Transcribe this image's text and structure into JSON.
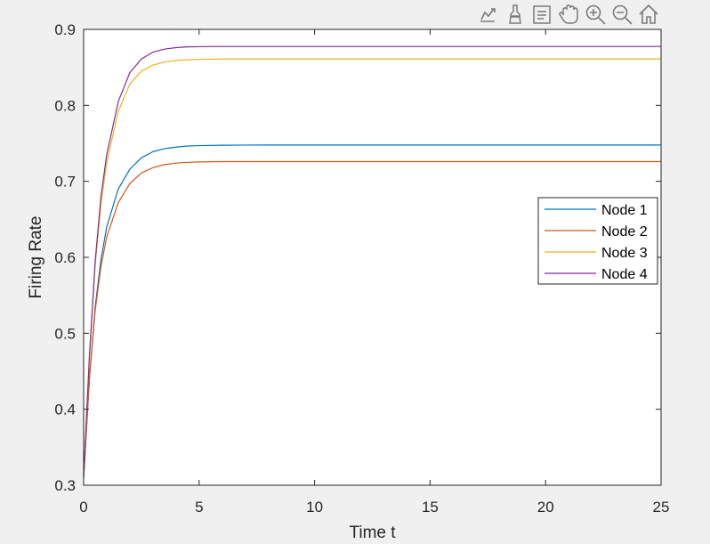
{
  "toolbar": {
    "buttons": [
      {
        "name": "export-icon"
      },
      {
        "name": "brush-icon"
      },
      {
        "name": "datatip-icon"
      },
      {
        "name": "pan-icon"
      },
      {
        "name": "zoom-in-icon"
      },
      {
        "name": "zoom-out-icon"
      },
      {
        "name": "home-icon"
      }
    ]
  },
  "chart_data": {
    "type": "line",
    "title": "",
    "xlabel": "Time t",
    "ylabel": "Firing Rate",
    "xlim": [
      0,
      25
    ],
    "ylim": [
      0.3,
      0.9
    ],
    "xticks": [
      0,
      5,
      10,
      15,
      20,
      25
    ],
    "yticks": [
      0.3,
      0.4,
      0.5,
      0.6,
      0.7,
      0.8,
      0.9
    ],
    "xtick_labels": [
      "0",
      "5",
      "10",
      "15",
      "20",
      "25"
    ],
    "ytick_labels": [
      "0.3",
      "0.4",
      "0.5",
      "0.6",
      "0.7",
      "0.8",
      "0.9"
    ],
    "grid": false,
    "legend_position": "right",
    "x": [
      0,
      0.25,
      0.5,
      0.75,
      1,
      1.5,
      2,
      2.5,
      3,
      3.5,
      4,
      4.5,
      5,
      6,
      7,
      8,
      10,
      12,
      15,
      20,
      25
    ],
    "series": [
      {
        "name": "Node 1",
        "color": "#0072BD",
        "values": [
          0.31,
          0.44,
          0.535,
          0.597,
          0.64,
          0.69,
          0.716,
          0.731,
          0.739,
          0.743,
          0.745,
          0.7465,
          0.747,
          0.7475,
          0.7477,
          0.7478,
          0.7478,
          0.7478,
          0.7478,
          0.7478,
          0.7478
        ]
      },
      {
        "name": "Node 2",
        "color": "#D95319",
        "values": [
          0.31,
          0.44,
          0.53,
          0.588,
          0.627,
          0.672,
          0.697,
          0.711,
          0.718,
          0.722,
          0.724,
          0.725,
          0.7255,
          0.726,
          0.726,
          0.726,
          0.726,
          0.726,
          0.726,
          0.726,
          0.726
        ]
      },
      {
        "name": "Node 3",
        "color": "#EDB120",
        "values": [
          0.31,
          0.47,
          0.59,
          0.67,
          0.725,
          0.792,
          0.828,
          0.845,
          0.853,
          0.857,
          0.859,
          0.86,
          0.8605,
          0.861,
          0.861,
          0.861,
          0.861,
          0.861,
          0.861,
          0.861,
          0.861
        ]
      },
      {
        "name": "Node 4",
        "color": "#7E2F8E",
        "values": [
          0.31,
          0.47,
          0.595,
          0.68,
          0.735,
          0.805,
          0.843,
          0.861,
          0.87,
          0.874,
          0.876,
          0.877,
          0.8772,
          0.8775,
          0.8775,
          0.8775,
          0.8775,
          0.8775,
          0.8775,
          0.8775,
          0.8775
        ]
      }
    ]
  }
}
